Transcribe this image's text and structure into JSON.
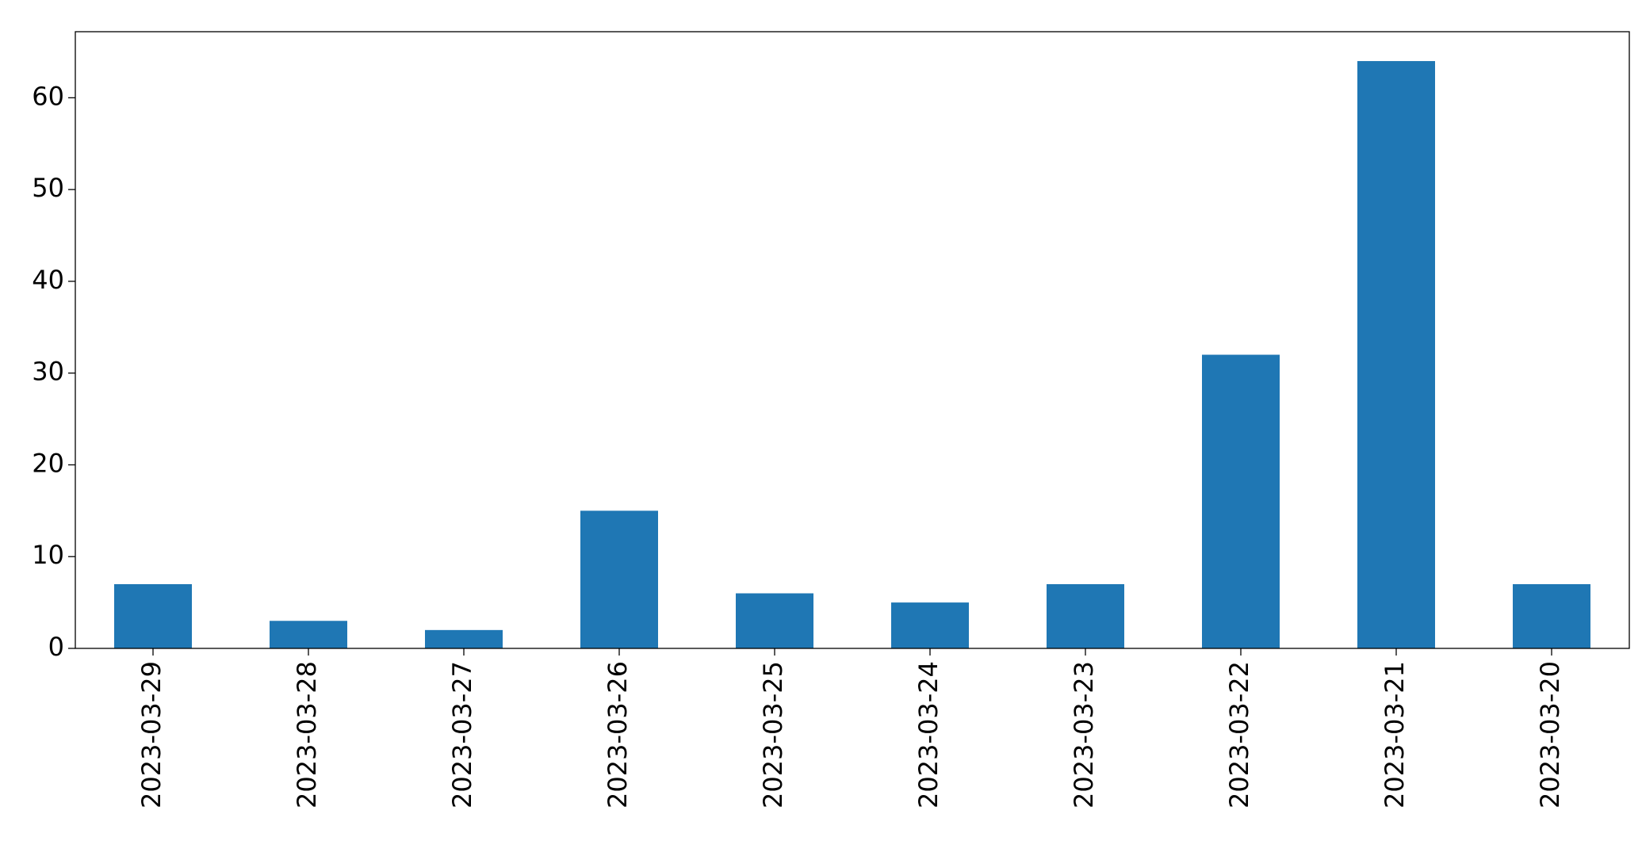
{
  "chart_data": {
    "type": "bar",
    "categories": [
      "2023-03-29",
      "2023-03-28",
      "2023-03-27",
      "2023-03-26",
      "2023-03-25",
      "2023-03-24",
      "2023-03-23",
      "2023-03-22",
      "2023-03-21",
      "2023-03-20"
    ],
    "values": [
      7,
      3,
      2,
      15,
      6,
      5,
      7,
      32,
      64,
      7
    ],
    "color": "#1f77b4",
    "ylim": [
      0,
      67.2
    ],
    "yticks": [
      0,
      10,
      20,
      30,
      40,
      50,
      60
    ],
    "grid": false
  }
}
